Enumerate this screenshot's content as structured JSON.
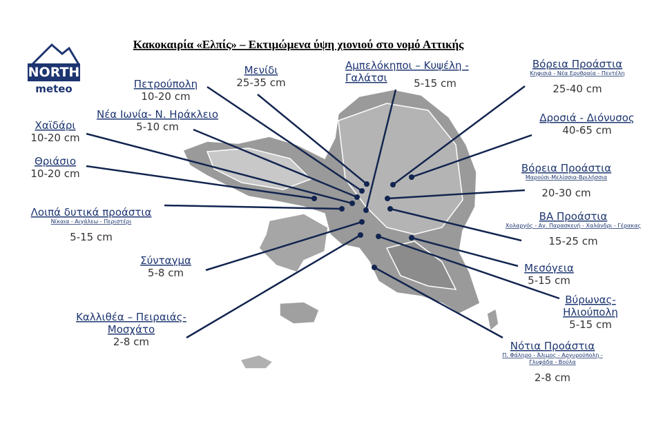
{
  "title": "Κακοκαιρία «Ελπίς» – Εκτιμώμενα ύψη χιονιού στο νομό Αττικής",
  "logo": {
    "top": "NORTH",
    "bottom": "meteo"
  },
  "areas": [
    {
      "name": [
        "Μενίδι"
      ],
      "snow": "25-35 cm"
    },
    {
      "name": [
        "Αμπελόκηποι – Κυψέλη -",
        "Γαλάτσι"
      ],
      "snow": "5-15 cm"
    },
    {
      "name": [
        "Πετρούπολη"
      ],
      "snow": "10-20 cm"
    },
    {
      "name": [
        "Νέα Ιωνία- Ν. Ηράκλειο"
      ],
      "snow": "5-10 cm"
    },
    {
      "name": [
        "Χαϊδάρι"
      ],
      "snow": "10-20 cm"
    },
    {
      "name": [
        "Θριάσιο"
      ],
      "snow": "10-20 cm"
    },
    {
      "name": [
        "Λοιπά δυτικά προάστια"
      ],
      "sub": [
        "Νίκαια - Αιγάλεω - Περιστέρι"
      ],
      "snow": "5-15 cm"
    },
    {
      "name": [
        "Σύνταγμα"
      ],
      "snow": "5-8 cm"
    },
    {
      "name": [
        "Καλλιθέα – Πειραιάς-",
        "Μοσχάτο"
      ],
      "snow": "2-8 cm"
    },
    {
      "name": [
        "Βόρεια Προάστια"
      ],
      "sub": [
        "Κηφισιά - Νέα Ερυθραία - Πεντέλη"
      ],
      "snow": "25-40 cm"
    },
    {
      "name": [
        "Δροσιά - Διόνυσος"
      ],
      "snow": "40-65 cm"
    },
    {
      "name": [
        "Βόρεια Προάστια"
      ],
      "sub": [
        "Μαρούσι-Μελίσσια-Βριλήσσια"
      ],
      "snow": "20-30 cm"
    },
    {
      "name": [
        "ΒΑ Προάστια"
      ],
      "sub": [
        "Χολαργός - Αγ. Παρασκευή - Χαλάνδρι - Γέρακας"
      ],
      "snow": "15-25 cm"
    },
    {
      "name": [
        "Μεσόγεια"
      ],
      "snow": "5-15 cm"
    },
    {
      "name": [
        "Βύρωνας-",
        "Ηλιούπολη"
      ],
      "snow": "5-15 cm"
    },
    {
      "name": [
        "Νότια Προάστια"
      ],
      "sub": [
        "Π. Φάληρο - Άλιμος - Αργυρούπολη -",
        "Γλυφάδα - Βούλα"
      ],
      "snow": "2-8 cm"
    }
  ]
}
